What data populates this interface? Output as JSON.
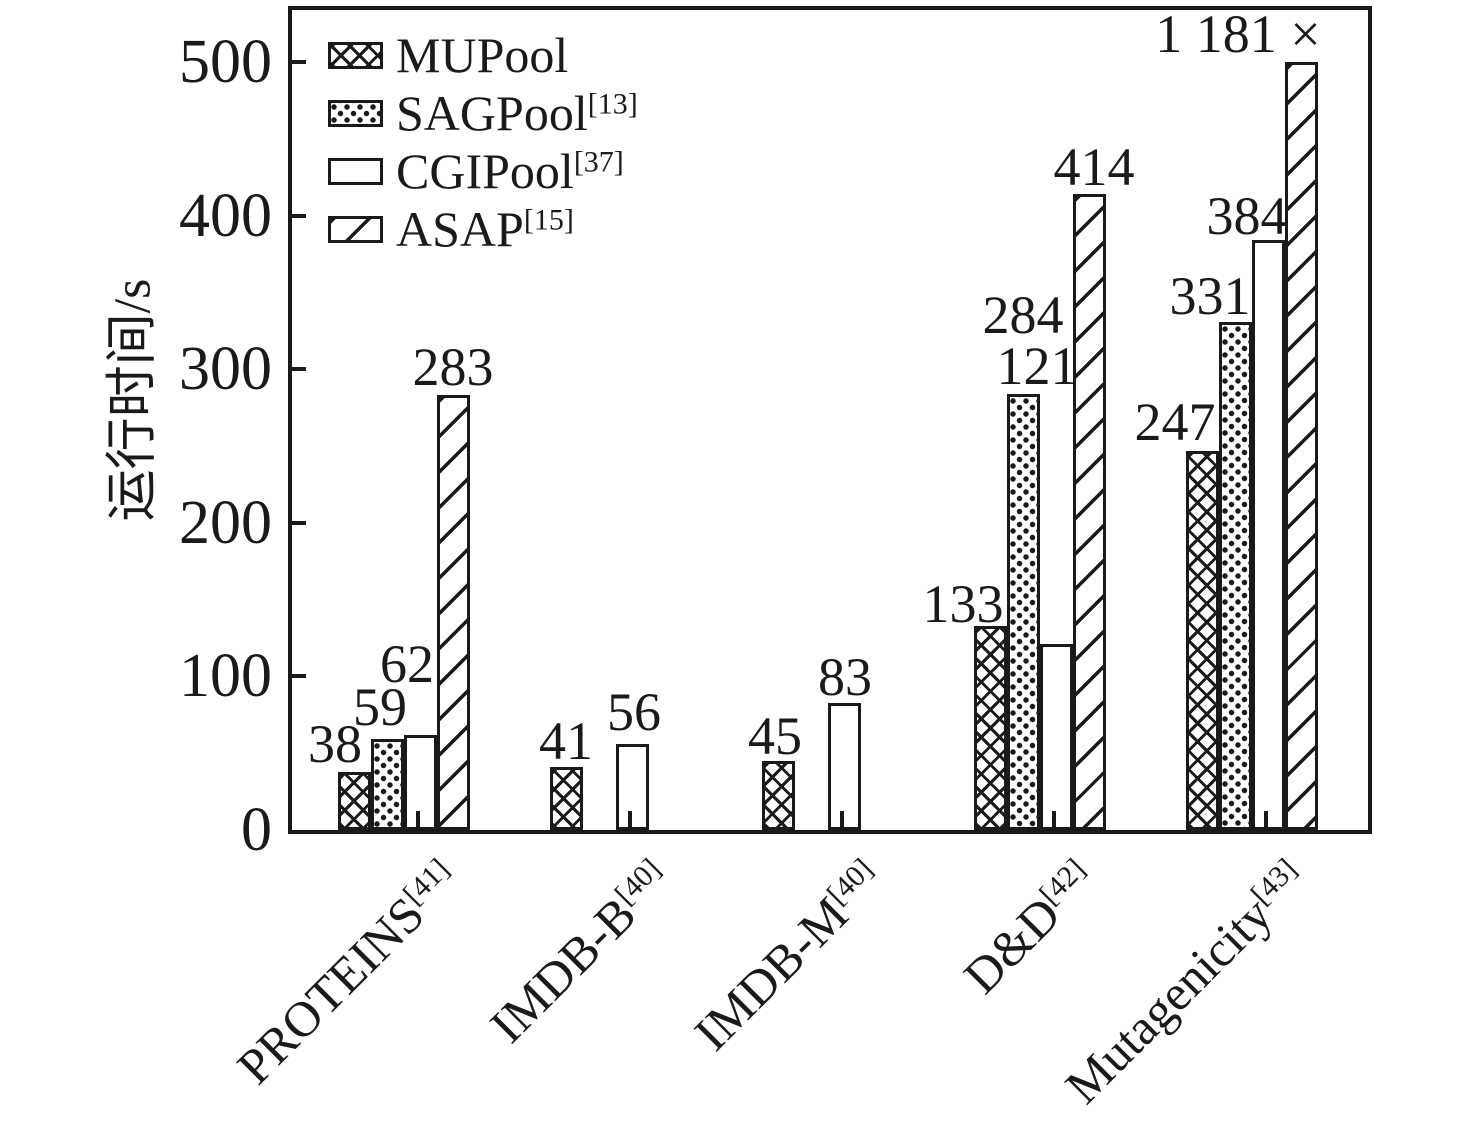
{
  "figure": {
    "background": "#ffffff",
    "ink_color": "#1a1a1a"
  },
  "y_axis": {
    "title": "运行时间/s",
    "tick_labels": [
      "0",
      "100",
      "200",
      "300",
      "400",
      "500"
    ]
  },
  "legend": {
    "items": [
      {
        "label": "MUPool",
        "ref": "",
        "pattern": "crosshatch"
      },
      {
        "label": "SAGPool",
        "ref": "[13]",
        "pattern": "dots"
      },
      {
        "label": "CGIPool",
        "ref": "[37]",
        "pattern": "plain"
      },
      {
        "label": "ASAP",
        "ref": "[15]",
        "pattern": "diagonal"
      }
    ]
  },
  "chart_data": {
    "type": "bar",
    "title": "",
    "xlabel": "",
    "ylabel": "运行时间/s",
    "ylim": [
      0,
      500
    ],
    "yticks": [
      0,
      100,
      200,
      300,
      400,
      500
    ],
    "grid": false,
    "legend_position": "upper left",
    "bar_clip_max": 500,
    "categories": [
      {
        "name": "PROTEINS",
        "ref": "[41]"
      },
      {
        "name": "IMDB-B",
        "ref": "[40]"
      },
      {
        "name": "IMDB-M",
        "ref": "[40]"
      },
      {
        "name": "D&D",
        "ref": "[42]"
      },
      {
        "name": "Mutagenicity",
        "ref": "[43]"
      }
    ],
    "series": [
      {
        "name": "MUPool",
        "ref": "",
        "pattern": "crosshatch",
        "values": [
          38,
          41,
          45,
          133,
          247
        ],
        "labels": [
          "38",
          "41",
          "45",
          "133",
          "247"
        ]
      },
      {
        "name": "SAGPool",
        "ref": "[13]",
        "pattern": "dots",
        "values": [
          59,
          null,
          null,
          284,
          331
        ],
        "labels": [
          "59",
          "",
          "",
          "284",
          "331"
        ]
      },
      {
        "name": "CGIPool",
        "ref": "[37]",
        "pattern": "plain",
        "values": [
          62,
          56,
          83,
          121,
          384
        ],
        "labels": [
          "62",
          "56",
          "83",
          "121",
          "384"
        ]
      },
      {
        "name": "ASAP",
        "ref": "[15]",
        "pattern": "diagonal",
        "values": [
          283,
          null,
          null,
          414,
          1181
        ],
        "labels": [
          "283",
          "",
          "",
          "414",
          "1 181 ×"
        ],
        "note": "Mutagenicity bar truncated at 500; actual value 1181 marked with ×"
      }
    ]
  }
}
